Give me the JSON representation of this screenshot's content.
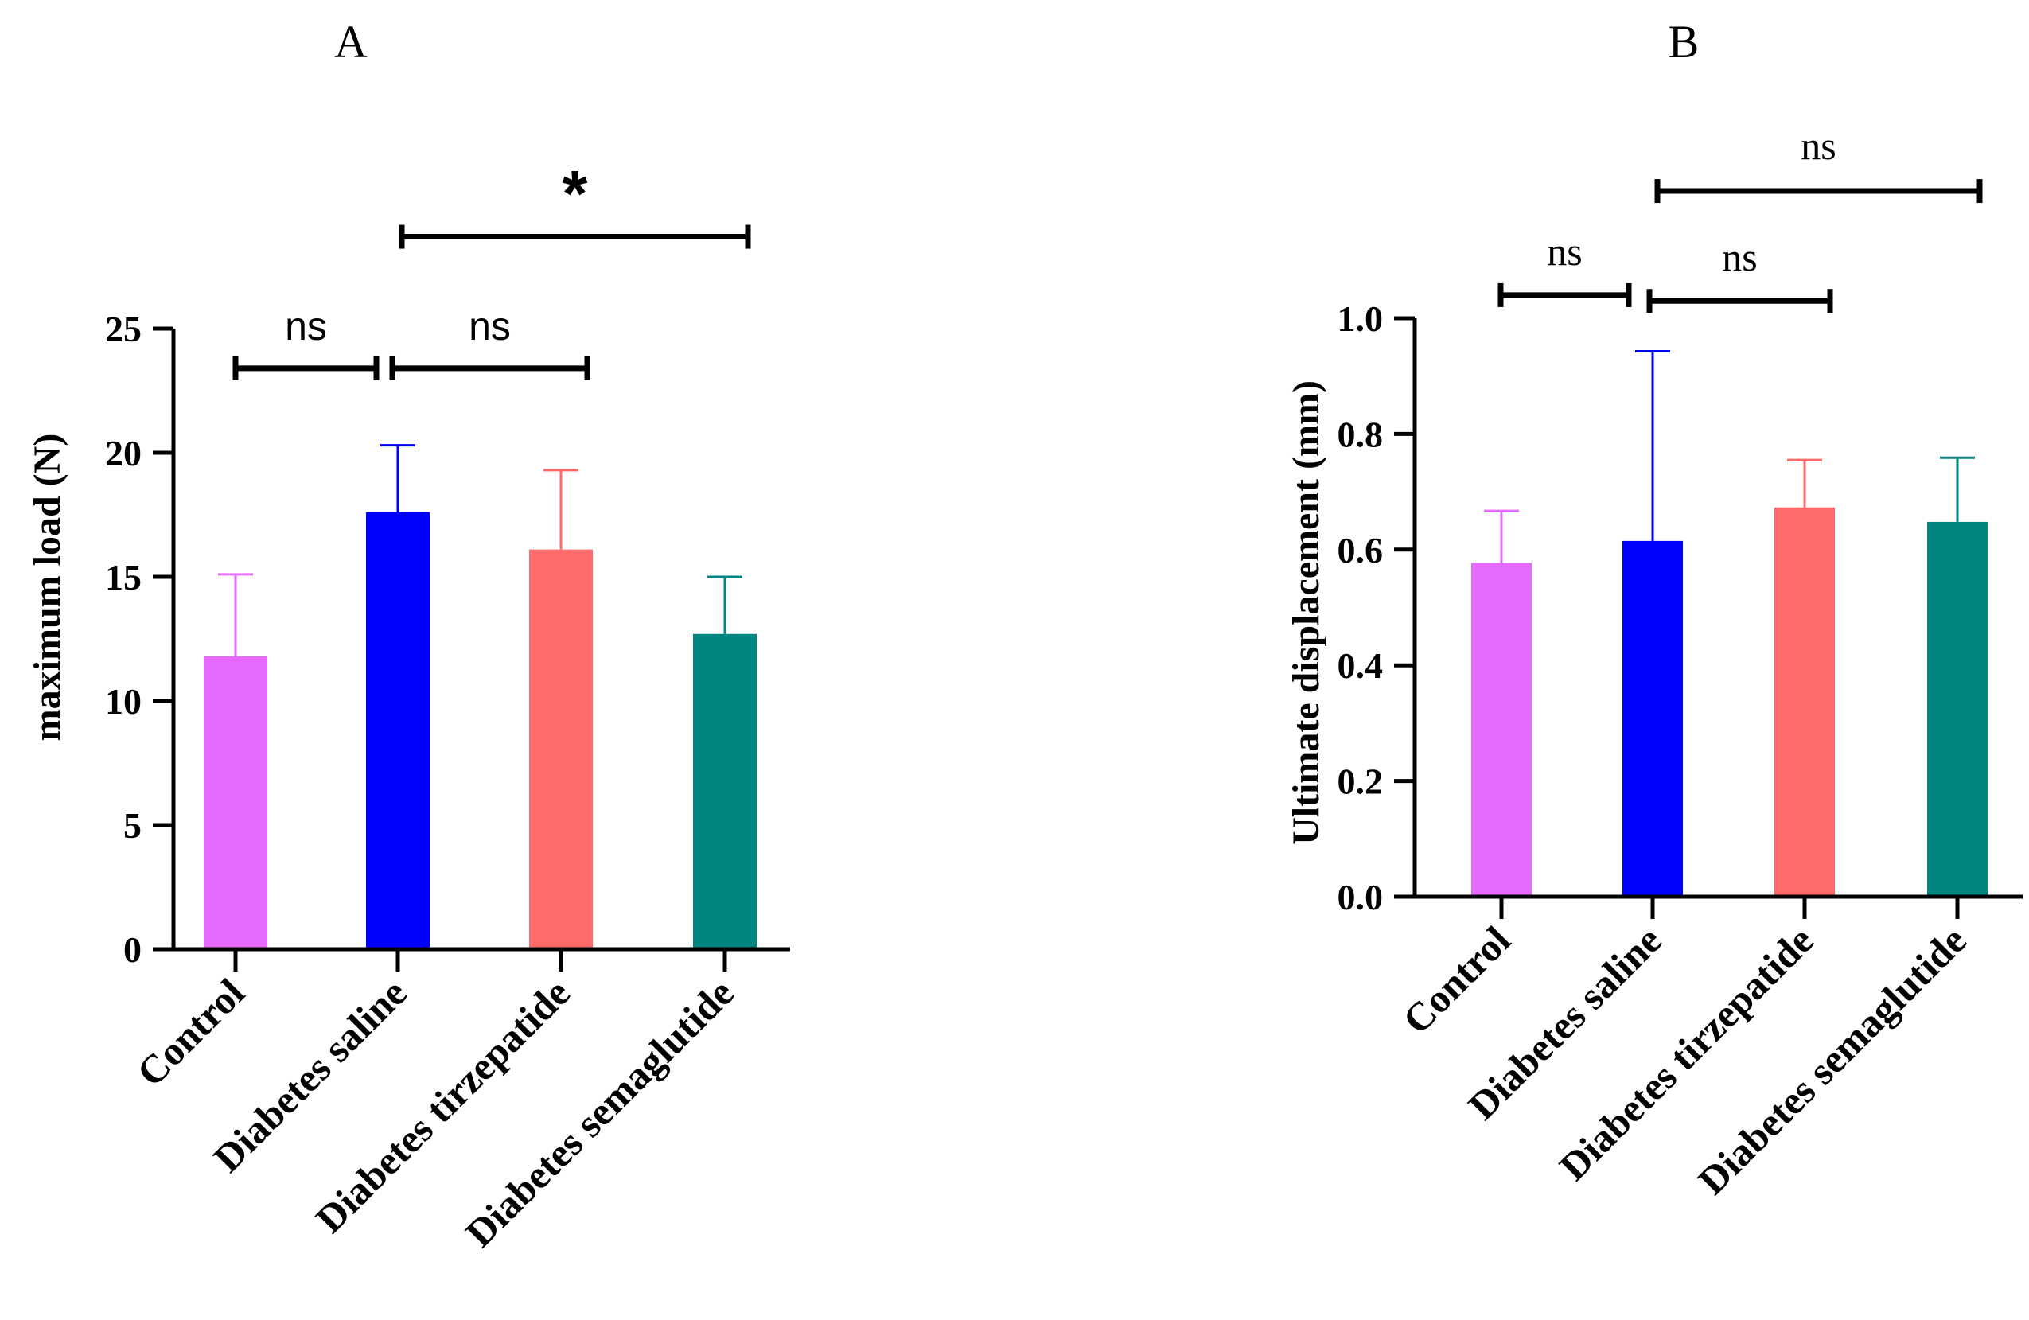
{
  "chart_data": [
    {
      "type": "bar",
      "panel_label": "A",
      "title": "",
      "xlabel": "",
      "ylabel": "maximum load  (N)",
      "ylim": [
        0,
        25
      ],
      "yticks": [
        "0",
        "5",
        "10",
        "15",
        "20",
        "25"
      ],
      "yticks_values": [
        0,
        5,
        10,
        15,
        20,
        25
      ],
      "categories": [
        "Control",
        "Diabetes saline",
        "Diabetes tirzepatide",
        "Diabetes semaglutide"
      ],
      "values": [
        11.8,
        17.6,
        16.1,
        12.7
      ],
      "errors": [
        3.3,
        2.7,
        3.2,
        2.3
      ],
      "colors": [
        "#e56bff",
        "#0000ff",
        "#ff6b6b",
        "#008580"
      ],
      "grid": false,
      "significance": [
        {
          "from": 0,
          "to": 1,
          "label": "ns",
          "y": 23.4
        },
        {
          "from": 1,
          "to": 2,
          "label": "ns",
          "y": 23.4
        },
        {
          "from": 1,
          "to": 3,
          "label": "*",
          "y": 28.7
        }
      ]
    },
    {
      "type": "bar",
      "panel_label": "B",
      "title": "",
      "xlabel": "",
      "ylabel": "Ultimate displacement (mm)",
      "ylim": [
        0,
        1.0
      ],
      "yticks": [
        "0.0",
        "0.2",
        "0.4",
        "0.6",
        "0.8",
        "1.0"
      ],
      "yticks_values": [
        0,
        0.2,
        0.4,
        0.6,
        0.8,
        1.0
      ],
      "categories": [
        "Control",
        "Diabetes saline",
        "Diabetes tirzepatide",
        "Diabetes semaglutide"
      ],
      "values": [
        0.577,
        0.615,
        0.673,
        0.648
      ],
      "errors": [
        0.09,
        0.328,
        0.082,
        0.111
      ],
      "colors": [
        "#e56bff",
        "#0000ff",
        "#ff6b6b",
        "#008580"
      ],
      "grid": false,
      "significance": [
        {
          "from": 0,
          "to": 1,
          "label": "ns",
          "y": 1.04
        },
        {
          "from": 1,
          "to": 2,
          "label": "ns",
          "y": 1.03
        },
        {
          "from": 1,
          "to": 3,
          "label": "ns",
          "y": 1.22
        }
      ]
    }
  ]
}
